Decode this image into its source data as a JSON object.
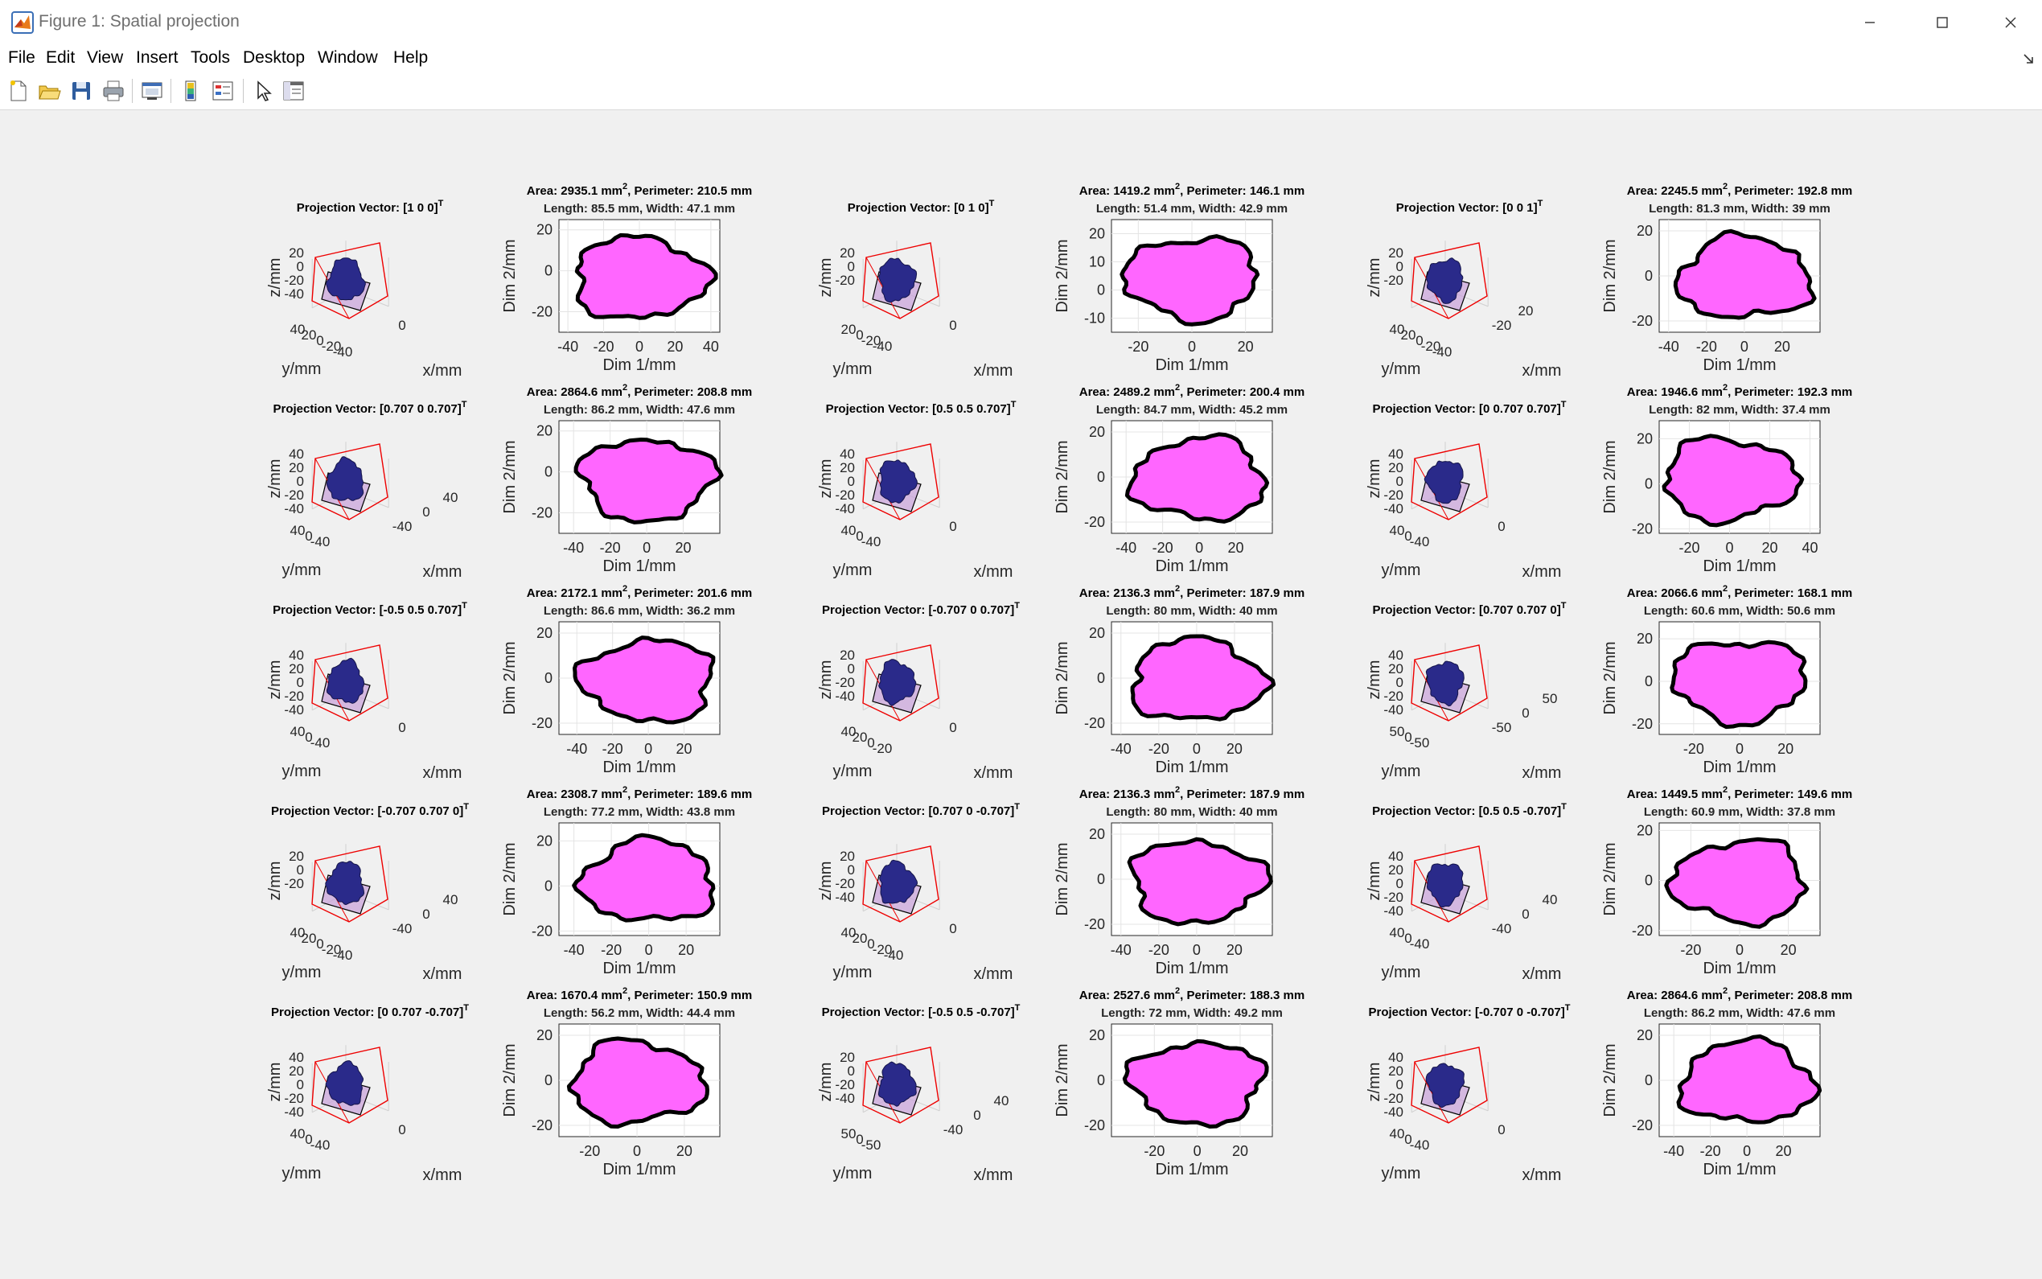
{
  "window": {
    "title": "Figure 1: Spatial projection",
    "menu": [
      "File",
      "Edit",
      "View",
      "Insert",
      "Tools",
      "Desktop",
      "Window",
      "Help"
    ],
    "toolbar_icons": [
      "new-figure-icon",
      "open-icon",
      "save-icon",
      "print-icon",
      "link-plot-icon",
      "colorbar-icon",
      "legend-icon",
      "pointer-icon",
      "property-inspector-icon"
    ],
    "controls": [
      "minimize-icon",
      "maximize-icon",
      "close-icon"
    ]
  },
  "colors": {
    "fill": "#ff66ff",
    "outline": "#000000",
    "box": "#ee0000",
    "solid": "#2a2a8a"
  },
  "chart_data": [
    {
      "type": "other",
      "projection": "Projection Vector: [1 0 0]",
      "sup": "T",
      "zlabel": "z/mm",
      "ylabel": "y/mm",
      "xlabel": "x/mm",
      "zticks": [
        "20",
        "0",
        "-20",
        "-40"
      ],
      "yticks": [
        "40",
        "20",
        "0",
        "-20",
        "-40"
      ],
      "xticks": [
        "0"
      ]
    },
    {
      "type": "area",
      "line1": "Area: 2935.1 mm",
      "sup": "2",
      "line1b": ", Perimeter: 210.5 mm",
      "line2": "Length: 85.5 mm, Width: 47.1 mm",
      "xlabel": "Dim 1/mm",
      "ylabel": "Dim 2/mm",
      "xticks": [
        "-40",
        "-20",
        "0",
        "20",
        "40"
      ],
      "yticks": [
        "20",
        "0",
        "-20"
      ],
      "xlim": [
        -45,
        45
      ],
      "ylim": [
        -30,
        25
      ]
    },
    {
      "type": "other",
      "projection": "Projection Vector: [0 1 0]",
      "sup": "T",
      "zlabel": "z/mm",
      "ylabel": "y/mm",
      "xlabel": "x/mm",
      "zticks": [
        "20",
        "0",
        "-20"
      ],
      "yticks": [
        "20",
        "0",
        "-20",
        "-40"
      ],
      "xticks": [
        "0"
      ]
    },
    {
      "type": "area",
      "line1": "Area: 1419.2 mm",
      "sup": "2",
      "line1b": ", Perimeter: 146.1 mm",
      "line2": "Length: 51.4 mm, Width: 42.9 mm",
      "xlabel": "Dim 1/mm",
      "ylabel": "Dim 2/mm",
      "xticks": [
        "-20",
        "0",
        "20"
      ],
      "yticks": [
        "20",
        "10",
        "0",
        "-10"
      ],
      "xlim": [
        -30,
        30
      ],
      "ylim": [
        -15,
        25
      ]
    },
    {
      "type": "other",
      "projection": "Projection Vector: [0 0 1]",
      "sup": "T",
      "zlabel": "z/mm",
      "ylabel": "y/mm",
      "xlabel": "x/mm",
      "zticks": [
        "20",
        "0",
        "-20"
      ],
      "yticks": [
        "40",
        "20",
        "0",
        "-20",
        "-40"
      ],
      "xticks": [
        "-20",
        "20"
      ]
    },
    {
      "type": "area",
      "line1": "Area: 2245.5 mm",
      "sup": "2",
      "line1b": ", Perimeter: 192.8 mm",
      "line2": "Length: 81.3 mm, Width: 39 mm",
      "xlabel": "Dim 1/mm",
      "ylabel": "Dim 2/mm",
      "xticks": [
        "-40",
        "-20",
        "0",
        "20"
      ],
      "yticks": [
        "20",
        "0",
        "-20"
      ],
      "xlim": [
        -45,
        40
      ],
      "ylim": [
        -25,
        25
      ]
    },
    {
      "type": "other",
      "projection": "Projection Vector: [0.707 0 0.707]",
      "sup": "T",
      "zlabel": "z/mm",
      "ylabel": "y/mm",
      "xlabel": "x/mm",
      "zticks": [
        "40",
        "20",
        "0",
        "-20",
        "-40"
      ],
      "yticks": [
        "40",
        "0",
        "-40"
      ],
      "xticks": [
        "-40",
        "0",
        "40"
      ]
    },
    {
      "type": "area",
      "line1": "Area: 2864.6 mm",
      "sup": "2",
      "line1b": ", Perimeter: 208.8 mm",
      "line2": "Length: 86.2 mm, Width: 47.6 mm",
      "xlabel": "Dim 1/mm",
      "ylabel": "Dim 2/mm",
      "xticks": [
        "-40",
        "-20",
        "0",
        "20"
      ],
      "yticks": [
        "20",
        "0",
        "-20"
      ],
      "xlim": [
        -48,
        40
      ],
      "ylim": [
        -30,
        25
      ]
    },
    {
      "type": "other",
      "projection": "Projection Vector: [0.5 0.5 0.707]",
      "sup": "T",
      "zlabel": "z/mm",
      "ylabel": "y/mm",
      "xlabel": "x/mm",
      "zticks": [
        "40",
        "20",
        "0",
        "-20",
        "-40"
      ],
      "yticks": [
        "40",
        "0",
        "-40"
      ],
      "xticks": [
        "0"
      ]
    },
    {
      "type": "area",
      "line1": "Area: 2489.2 mm",
      "sup": "2",
      "line1b": ", Perimeter: 200.4 mm",
      "line2": "Length: 84.7 mm, Width: 45.2 mm",
      "xlabel": "Dim 1/mm",
      "ylabel": "Dim 2/mm",
      "xticks": [
        "-40",
        "-20",
        "0",
        "20"
      ],
      "yticks": [
        "20",
        "0",
        "-20"
      ],
      "xlim": [
        -48,
        40
      ],
      "ylim": [
        -25,
        25
      ]
    },
    {
      "type": "other",
      "projection": "Projection Vector: [0 0.707 0.707]",
      "sup": "T",
      "zlabel": "z/mm",
      "ylabel": "y/mm",
      "xlabel": "x/mm",
      "zticks": [
        "40",
        "20",
        "0",
        "-20",
        "-40"
      ],
      "yticks": [
        "40",
        "0",
        "-40"
      ],
      "xticks": [
        "0"
      ]
    },
    {
      "type": "area",
      "line1": "Area: 1946.6 mm",
      "sup": "2",
      "line1b": ", Perimeter: 192.3 mm",
      "line2": "Length: 82 mm, Width: 37.4 mm",
      "xlabel": "Dim 1/mm",
      "ylabel": "Dim 2/mm",
      "xticks": [
        "-20",
        "0",
        "20",
        "40"
      ],
      "yticks": [
        "20",
        "0",
        "-20"
      ],
      "xlim": [
        -35,
        45
      ],
      "ylim": [
        -22,
        28
      ]
    },
    {
      "type": "other",
      "projection": "Projection Vector: [-0.5 0.5 0.707]",
      "sup": "T",
      "zlabel": "z/mm",
      "ylabel": "y/mm",
      "xlabel": "x/mm",
      "zticks": [
        "40",
        "20",
        "0",
        "-20",
        "-40"
      ],
      "yticks": [
        "40",
        "0",
        "-40"
      ],
      "xticks": [
        "0"
      ]
    },
    {
      "type": "area",
      "line1": "Area: 2172.1 mm",
      "sup": "2",
      "line1b": ", Perimeter: 201.6 mm",
      "line2": "Length: 86.6 mm, Width: 36.2 mm",
      "xlabel": "Dim 1/mm",
      "ylabel": "Dim 2/mm",
      "xticks": [
        "-40",
        "-20",
        "0",
        "20"
      ],
      "yticks": [
        "20",
        "0",
        "-20"
      ],
      "xlim": [
        -50,
        40
      ],
      "ylim": [
        -25,
        25
      ]
    },
    {
      "type": "other",
      "projection": "Projection Vector: [-0.707 0 0.707]",
      "sup": "T",
      "zlabel": "z/mm",
      "ylabel": "y/mm",
      "xlabel": "x/mm",
      "zticks": [
        "20",
        "0",
        "-20",
        "-40"
      ],
      "yticks": [
        "40",
        "20",
        "0",
        "-20"
      ],
      "xticks": [
        "0"
      ]
    },
    {
      "type": "area",
      "line1": "Area: 2136.3 mm",
      "sup": "2",
      "line1b": ", Perimeter: 187.9 mm",
      "line2": "Length: 80 mm, Width: 40 mm",
      "xlabel": "Dim 1/mm",
      "ylabel": "Dim 2/mm",
      "xticks": [
        "-40",
        "-20",
        "0",
        "20"
      ],
      "yticks": [
        "20",
        "0",
        "-20"
      ],
      "xlim": [
        -45,
        40
      ],
      "ylim": [
        -25,
        25
      ]
    },
    {
      "type": "other",
      "projection": "Projection Vector: [0.707 0.707 0]",
      "sup": "T",
      "zlabel": "z/mm",
      "ylabel": "y/mm",
      "xlabel": "x/mm",
      "zticks": [
        "40",
        "20",
        "0",
        "-20",
        "-40"
      ],
      "yticks": [
        "50",
        "0",
        "-50"
      ],
      "xticks": [
        "-50",
        "0",
        "50"
      ]
    },
    {
      "type": "area",
      "line1": "Area: 2066.6 mm",
      "sup": "2",
      "line1b": ", Perimeter: 168.1 mm",
      "line2": "Length: 60.6 mm, Width: 50.6 mm",
      "xlabel": "Dim 1/mm",
      "ylabel": "Dim 2/mm",
      "xticks": [
        "-20",
        "0",
        "20"
      ],
      "yticks": [
        "20",
        "0",
        "-20"
      ],
      "xlim": [
        -35,
        35
      ],
      "ylim": [
        -25,
        28
      ]
    },
    {
      "type": "other",
      "projection": "Projection Vector: [-0.707 0.707 0]",
      "sup": "T",
      "zlabel": "z/mm",
      "ylabel": "y/mm",
      "xlabel": "x/mm",
      "zticks": [
        "20",
        "0",
        "-20"
      ],
      "yticks": [
        "40",
        "20",
        "0",
        "-20",
        "-40"
      ],
      "xticks": [
        "-40",
        "0",
        "40"
      ]
    },
    {
      "type": "area",
      "line1": "Area: 2308.7 mm",
      "sup": "2",
      "line1b": ", Perimeter: 189.6 mm",
      "line2": "Length: 77.2 mm, Width: 43.8 mm",
      "xlabel": "Dim 1/mm",
      "ylabel": "Dim 2/mm",
      "xticks": [
        "-40",
        "-20",
        "0",
        "20"
      ],
      "yticks": [
        "20",
        "0",
        "-20"
      ],
      "xlim": [
        -48,
        38
      ],
      "ylim": [
        -22,
        28
      ]
    },
    {
      "type": "other",
      "projection": "Projection Vector: [0.707 0 -0.707]",
      "sup": "T",
      "zlabel": "z/mm",
      "ylabel": "y/mm",
      "xlabel": "x/mm",
      "zticks": [
        "20",
        "0",
        "-20",
        "-40"
      ],
      "yticks": [
        "40",
        "20",
        "0",
        "-20",
        "-40"
      ],
      "xticks": [
        "0"
      ]
    },
    {
      "type": "area",
      "line1": "Area: 2136.3 mm",
      "sup": "2",
      "line1b": ", Perimeter: 187.9 mm",
      "line2": "Length: 80 mm, Width: 40 mm",
      "xlabel": "Dim 1/mm",
      "ylabel": "Dim 2/mm",
      "xticks": [
        "-40",
        "-20",
        "0",
        "20"
      ],
      "yticks": [
        "20",
        "0",
        "-20"
      ],
      "xlim": [
        -45,
        40
      ],
      "ylim": [
        -25,
        25
      ]
    },
    {
      "type": "other",
      "projection": "Projection Vector: [0.5 0.5 -0.707]",
      "sup": "T",
      "zlabel": "z/mm",
      "ylabel": "y/mm",
      "xlabel": "x/mm",
      "zticks": [
        "40",
        "20",
        "0",
        "-20",
        "-40"
      ],
      "yticks": [
        "40",
        "0",
        "-40"
      ],
      "xticks": [
        "-40",
        "0",
        "40"
      ]
    },
    {
      "type": "area",
      "line1": "Area: 1449.5 mm",
      "sup": "2",
      "line1b": ", Perimeter: 149.6 mm",
      "line2": "Length: 60.9 mm, Width: 37.8 mm",
      "xlabel": "Dim 1/mm",
      "ylabel": "Dim 2/mm",
      "xticks": [
        "-20",
        "0",
        "20"
      ],
      "yticks": [
        "20",
        "0",
        "-20"
      ],
      "xlim": [
        -33,
        33
      ],
      "ylim": [
        -22,
        23
      ]
    },
    {
      "type": "other",
      "projection": "Projection Vector: [0 0.707 -0.707]",
      "sup": "T",
      "zlabel": "z/mm",
      "ylabel": "y/mm",
      "xlabel": "x/mm",
      "zticks": [
        "40",
        "20",
        "0",
        "-20",
        "-40"
      ],
      "yticks": [
        "40",
        "0",
        "-40"
      ],
      "xticks": [
        "0"
      ]
    },
    {
      "type": "area",
      "line1": "Area: 1670.4 mm",
      "sup": "2",
      "line1b": ", Perimeter: 150.9 mm",
      "line2": "Length: 56.2 mm, Width: 44.4 mm",
      "xlabel": "Dim 1/mm",
      "ylabel": "Dim 2/mm",
      "xticks": [
        "-20",
        "0",
        "20"
      ],
      "yticks": [
        "20",
        "0",
        "-20"
      ],
      "xlim": [
        -33,
        35
      ],
      "ylim": [
        -25,
        25
      ]
    },
    {
      "type": "other",
      "projection": "Projection Vector: [-0.5 0.5 -0.707]",
      "sup": "T",
      "zlabel": "z/mm",
      "ylabel": "y/mm",
      "xlabel": "x/mm",
      "zticks": [
        "20",
        "0",
        "-20",
        "-40"
      ],
      "yticks": [
        "50",
        "0",
        "-50"
      ],
      "xticks": [
        "-40",
        "0",
        "40"
      ]
    },
    {
      "type": "area",
      "line1": "Area: 2527.6 mm",
      "sup": "2",
      "line1b": ", Perimeter: 188.3 mm",
      "line2": "Length: 72 mm, Width: 49.2 mm",
      "xlabel": "Dim 1/mm",
      "ylabel": "Dim 2/mm",
      "xticks": [
        "-20",
        "0",
        "20"
      ],
      "yticks": [
        "20",
        "0",
        "-20"
      ],
      "xlim": [
        -40,
        35
      ],
      "ylim": [
        -25,
        25
      ]
    },
    {
      "type": "other",
      "projection": "Projection Vector: [-0.707 0 -0.707]",
      "sup": "T",
      "zlabel": "z/mm",
      "ylabel": "y/mm",
      "xlabel": "x/mm",
      "zticks": [
        "40",
        "20",
        "0",
        "-20",
        "-40"
      ],
      "yticks": [
        "40",
        "0",
        "-40"
      ],
      "xticks": [
        "0"
      ]
    },
    {
      "type": "area",
      "line1": "Area: 2864.6 mm",
      "sup": "2",
      "line1b": ", Perimeter: 208.8 mm",
      "line2": "Length: 86.2 mm, Width: 47.6 mm",
      "xlabel": "Dim 1/mm",
      "ylabel": "Dim 2/mm",
      "xticks": [
        "-40",
        "-20",
        "0",
        "20"
      ],
      "yticks": [
        "20",
        "0",
        "-20"
      ],
      "xlim": [
        -48,
        40
      ],
      "ylim": [
        -25,
        25
      ]
    }
  ]
}
